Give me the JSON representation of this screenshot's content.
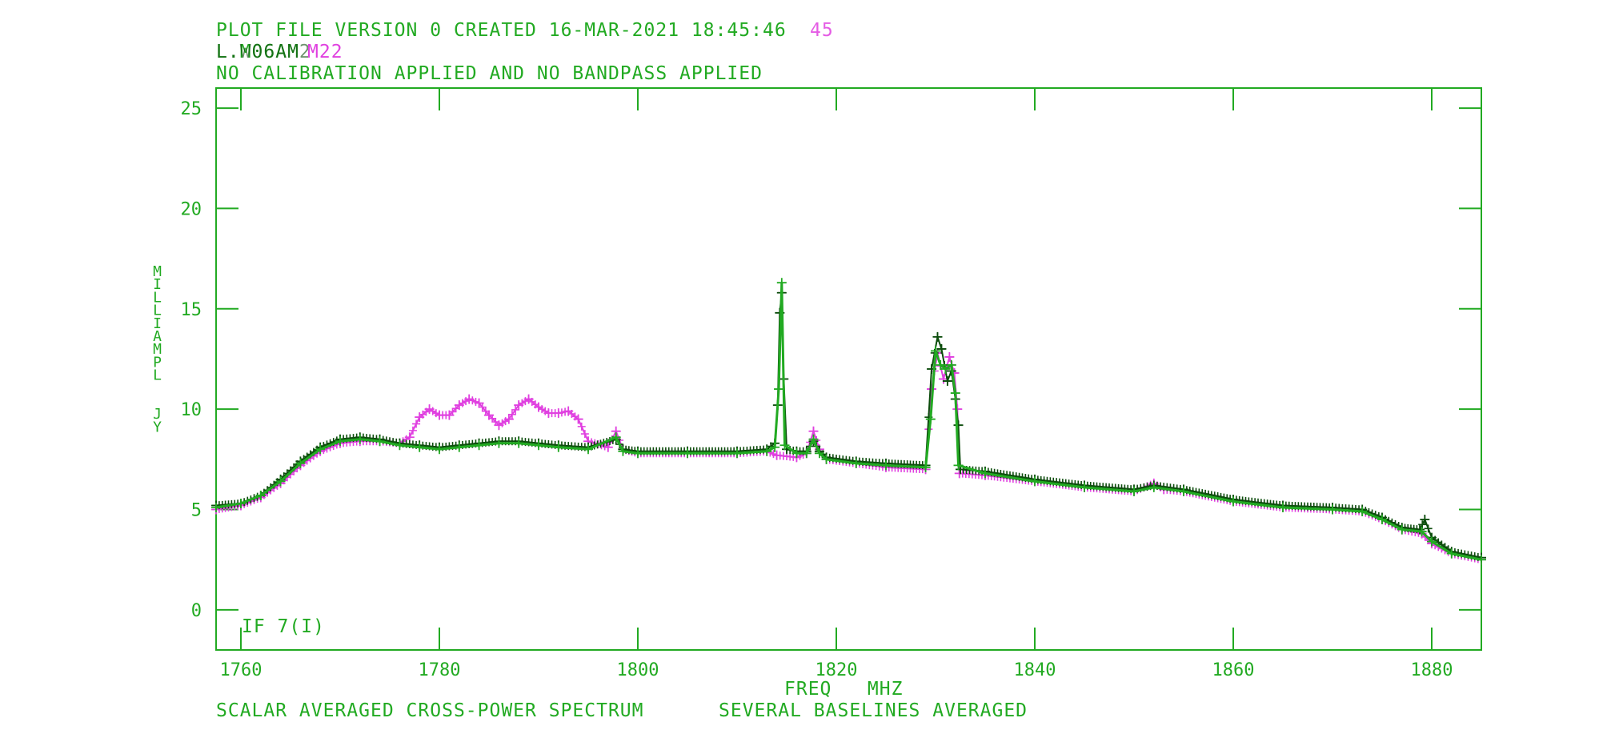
{
  "header": {
    "line1": "PLOT FILE VERSION 0  CREATED 16-MAR-2021 18:45:46",
    "line1_overprint": "45",
    "line2_green": "L.M06AM",
    "line2_dark": "L.W06AM2",
    "line2_magenta": "M22",
    "line3": "NO CALIBRATION APPLIED AND NO BANDPASS APPLIED"
  },
  "footer": {
    "left": "SCALAR AVERAGED CROSS-POWER SPECTRUM",
    "right": "SEVERAL BASELINES AVERAGED"
  },
  "colors": {
    "axis": "#22aa22",
    "series_dark": "#0d4d0d",
    "series_green": "#22aa22",
    "series_magenta": "#e040e0"
  },
  "chart_data": {
    "type": "line",
    "xlabel": "FREQ   MHZ",
    "ylabel": "MILLIAMPL  JY",
    "annotation": "IF 7(I)",
    "xlim": [
      1757.5,
      1885
    ],
    "ylim": [
      -2,
      26
    ],
    "xticks": [
      1760,
      1780,
      1800,
      1820,
      1840,
      1860,
      1880
    ],
    "yticks": [
      0,
      5,
      10,
      15,
      20,
      25
    ],
    "grid": false,
    "series": [
      {
        "name": "",
        "role": "magenta",
        "points": [
          [
            1757.5,
            5.0
          ],
          [
            1760,
            5.2
          ],
          [
            1762,
            5.6
          ],
          [
            1764,
            6.3
          ],
          [
            1766,
            7.2
          ],
          [
            1768,
            7.9
          ],
          [
            1770,
            8.3
          ],
          [
            1772,
            8.4
          ],
          [
            1774,
            8.4
          ],
          [
            1776,
            8.3
          ],
          [
            1777,
            8.6
          ],
          [
            1778,
            9.6
          ],
          [
            1779,
            10.0
          ],
          [
            1780,
            9.7
          ],
          [
            1781,
            9.7
          ],
          [
            1782,
            10.2
          ],
          [
            1783,
            10.5
          ],
          [
            1784,
            10.3
          ],
          [
            1785,
            9.7
          ],
          [
            1786,
            9.2
          ],
          [
            1787,
            9.5
          ],
          [
            1788,
            10.2
          ],
          [
            1789,
            10.5
          ],
          [
            1790,
            10.1
          ],
          [
            1791,
            9.8
          ],
          [
            1792,
            9.8
          ],
          [
            1793,
            9.9
          ],
          [
            1794,
            9.5
          ],
          [
            1795,
            8.4
          ],
          [
            1797,
            8.1
          ],
          [
            1797.8,
            8.9
          ],
          [
            1798.5,
            8.0
          ],
          [
            1800,
            7.8
          ],
          [
            1805,
            7.8
          ],
          [
            1810,
            7.8
          ],
          [
            1813,
            7.9
          ],
          [
            1814,
            7.7
          ],
          [
            1816,
            7.6
          ],
          [
            1817,
            7.8
          ],
          [
            1817.7,
            8.9
          ],
          [
            1818.3,
            8.0
          ],
          [
            1819,
            7.5
          ],
          [
            1822,
            7.3
          ],
          [
            1825,
            7.1
          ],
          [
            1829,
            7.0
          ],
          [
            1829.6,
            11.0
          ],
          [
            1830.2,
            12.8
          ],
          [
            1830.8,
            11.5
          ],
          [
            1831.4,
            12.6
          ],
          [
            1831.9,
            11.8
          ],
          [
            1832.2,
            10.0
          ],
          [
            1832.4,
            6.8
          ],
          [
            1835,
            6.7
          ],
          [
            1840,
            6.4
          ],
          [
            1845,
            6.1
          ],
          [
            1850,
            5.9
          ],
          [
            1852,
            6.3
          ],
          [
            1853,
            6.0
          ],
          [
            1855,
            5.9
          ],
          [
            1860,
            5.4
          ],
          [
            1865,
            5.1
          ],
          [
            1870,
            5.0
          ],
          [
            1873,
            4.9
          ],
          [
            1875,
            4.5
          ],
          [
            1877,
            4.0
          ],
          [
            1879,
            3.8
          ],
          [
            1880,
            3.3
          ],
          [
            1882,
            2.8
          ],
          [
            1885,
            2.5
          ]
        ]
      },
      {
        "name": "",
        "role": "dark",
        "points": [
          [
            1757.5,
            5.2
          ],
          [
            1760,
            5.3
          ],
          [
            1762,
            5.7
          ],
          [
            1764,
            6.5
          ],
          [
            1766,
            7.4
          ],
          [
            1768,
            8.1
          ],
          [
            1770,
            8.5
          ],
          [
            1772,
            8.6
          ],
          [
            1774,
            8.5
          ],
          [
            1776,
            8.3
          ],
          [
            1778,
            8.2
          ],
          [
            1780,
            8.1
          ],
          [
            1782,
            8.2
          ],
          [
            1784,
            8.3
          ],
          [
            1786,
            8.4
          ],
          [
            1788,
            8.4
          ],
          [
            1790,
            8.3
          ],
          [
            1792,
            8.2
          ],
          [
            1795,
            8.1
          ],
          [
            1797.8,
            8.5
          ],
          [
            1798.5,
            8.0
          ],
          [
            1800,
            7.9
          ],
          [
            1805,
            7.9
          ],
          [
            1810,
            7.9
          ],
          [
            1813,
            8.0
          ],
          [
            1813.8,
            8.3
          ],
          [
            1814.1,
            10.2
          ],
          [
            1814.3,
            14.8
          ],
          [
            1814.5,
            15.8
          ],
          [
            1814.7,
            11.5
          ],
          [
            1815,
            8.0
          ],
          [
            1816,
            7.9
          ],
          [
            1817,
            7.9
          ],
          [
            1817.7,
            8.4
          ],
          [
            1818.3,
            7.9
          ],
          [
            1819,
            7.6
          ],
          [
            1822,
            7.4
          ],
          [
            1825,
            7.3
          ],
          [
            1829,
            7.2
          ],
          [
            1829.6,
            12.0
          ],
          [
            1830.2,
            13.6
          ],
          [
            1830.6,
            13.0
          ],
          [
            1831.2,
            11.4
          ],
          [
            1831.6,
            11.9
          ],
          [
            1832,
            10.5
          ],
          [
            1832.3,
            9.2
          ],
          [
            1832.5,
            7.0
          ],
          [
            1835,
            6.9
          ],
          [
            1840,
            6.5
          ],
          [
            1845,
            6.2
          ],
          [
            1850,
            6.0
          ],
          [
            1852,
            6.2
          ],
          [
            1855,
            6.0
          ],
          [
            1860,
            5.5
          ],
          [
            1865,
            5.2
          ],
          [
            1870,
            5.1
          ],
          [
            1873,
            5.0
          ],
          [
            1875,
            4.6
          ],
          [
            1877,
            4.1
          ],
          [
            1878.8,
            4.0
          ],
          [
            1879.3,
            4.5
          ],
          [
            1880,
            3.6
          ],
          [
            1882,
            2.9
          ],
          [
            1885,
            2.6
          ]
        ]
      },
      {
        "name": "",
        "role": "green",
        "points": [
          [
            1757.5,
            5.1
          ],
          [
            1760,
            5.3
          ],
          [
            1762,
            5.7
          ],
          [
            1764,
            6.4
          ],
          [
            1766,
            7.3
          ],
          [
            1768,
            8.0
          ],
          [
            1770,
            8.4
          ],
          [
            1772,
            8.5
          ],
          [
            1774,
            8.4
          ],
          [
            1776,
            8.2
          ],
          [
            1778,
            8.1
          ],
          [
            1780,
            8.0
          ],
          [
            1782,
            8.1
          ],
          [
            1784,
            8.2
          ],
          [
            1786,
            8.3
          ],
          [
            1788,
            8.3
          ],
          [
            1790,
            8.2
          ],
          [
            1792,
            8.1
          ],
          [
            1795,
            8.0
          ],
          [
            1797.8,
            8.6
          ],
          [
            1798.5,
            7.9
          ],
          [
            1800,
            7.8
          ],
          [
            1805,
            7.8
          ],
          [
            1810,
            7.8
          ],
          [
            1813,
            7.9
          ],
          [
            1813.8,
            8.1
          ],
          [
            1814.2,
            11.0
          ],
          [
            1814.5,
            16.3
          ],
          [
            1814.8,
            8.2
          ],
          [
            1816,
            7.8
          ],
          [
            1817,
            7.8
          ],
          [
            1817.7,
            8.5
          ],
          [
            1818.3,
            7.8
          ],
          [
            1819,
            7.5
          ],
          [
            1822,
            7.3
          ],
          [
            1825,
            7.2
          ],
          [
            1829,
            7.1
          ],
          [
            1829.5,
            9.5
          ],
          [
            1830,
            12.9
          ],
          [
            1830.5,
            12.2
          ],
          [
            1831,
            12.0
          ],
          [
            1831.6,
            12.2
          ],
          [
            1832,
            10.8
          ],
          [
            1832.3,
            7.2
          ],
          [
            1835,
            6.8
          ],
          [
            1840,
            6.4
          ],
          [
            1845,
            6.1
          ],
          [
            1850,
            5.9
          ],
          [
            1852,
            6.1
          ],
          [
            1855,
            5.9
          ],
          [
            1860,
            5.4
          ],
          [
            1865,
            5.1
          ],
          [
            1870,
            5.0
          ],
          [
            1873,
            4.9
          ],
          [
            1875,
            4.5
          ],
          [
            1877,
            4.0
          ],
          [
            1879,
            3.9
          ],
          [
            1880,
            3.4
          ],
          [
            1882,
            2.8
          ],
          [
            1885,
            2.5
          ]
        ]
      }
    ]
  }
}
